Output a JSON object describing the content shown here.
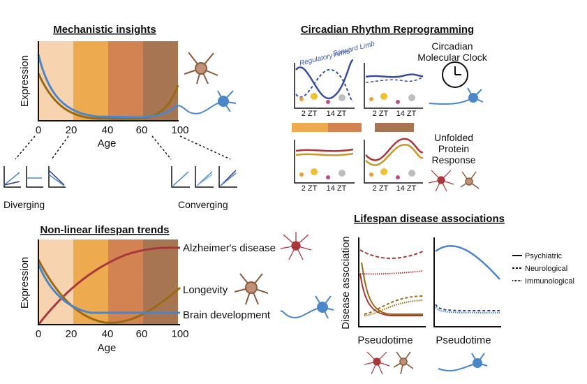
{
  "panels": {
    "mechanistic": {
      "title": "Mechanistic insights",
      "ylabel": "Expression",
      "xlabel": "Age",
      "ticks": [
        "0",
        "20",
        "40",
        "60",
        "80",
        "100"
      ],
      "diverging": "Diverging",
      "converging": "Converging"
    },
    "circadian": {
      "title": "Circadian Rhythm Reprogramming",
      "regulatory": "Regulatory Arms",
      "forward": "Forward Limb",
      "clock": "Circadian\nMolecular Clock",
      "upr": "Unfolded\nProtein\nResponse",
      "zt2": "2 ZT",
      "zt14": "14 ZT"
    },
    "nonlinear": {
      "title": "Non-linear lifespan trends",
      "ylabel": "Expression",
      "xlabel": "Age",
      "ticks": [
        "0",
        "20",
        "40",
        "60",
        "80",
        "100"
      ],
      "alz": "Alzheimer's disease",
      "longevity": "Longevity",
      "brain": "Brain development"
    },
    "disease": {
      "title": "Lifespan disease associations",
      "ylabel": "Disease association",
      "xlabel1": "Pseudotime",
      "xlabel2": "Pseudotime",
      "legend": [
        "Psychiatric",
        "Neurological",
        "Immunological"
      ]
    }
  },
  "colors": {
    "band1": "#f7d3b0",
    "band2": "#eeaa4e",
    "band3": "#d38352",
    "band4": "#a87552",
    "blue": "#4a86c8",
    "brown": "#9a6a14",
    "red": "#a8373c"
  }
}
